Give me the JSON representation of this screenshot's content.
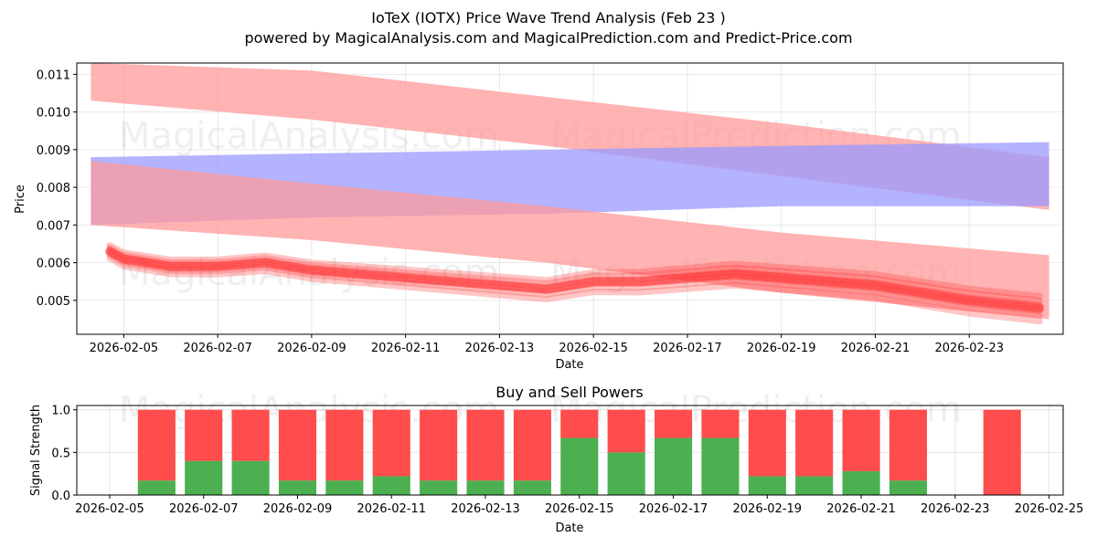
{
  "title_line1": "IoTeX (IOTX) Price Wave Trend Analysis (Feb 23 )",
  "title_line2": "powered by MagicalAnalysis.com and MagicalPrediction.com and Predict-Price.com",
  "watermarks": [
    "MagicalAnalysis.com",
    "MagicalPrediction.com"
  ],
  "colors": {
    "band_red": "#ff9999",
    "band_blue": "#9999ff",
    "price_red": "#ff3333",
    "buy": "#4caf50",
    "sell": "#ff4c4c"
  },
  "chart_data": [
    {
      "type": "area",
      "title": "",
      "xlabel": "Date",
      "ylabel": "Price",
      "grid": true,
      "xlim": [
        "2026-02-04",
        "2026-02-25"
      ],
      "ylim": [
        0.0041,
        0.0113
      ],
      "xticks": [
        "2026-02-05",
        "2026-02-07",
        "2026-02-09",
        "2026-02-11",
        "2026-02-13",
        "2026-02-15",
        "2026-02-17",
        "2026-02-19",
        "2026-02-21",
        "2026-02-23"
      ],
      "yticks": [
        "0.005",
        "0.006",
        "0.007",
        "0.008",
        "0.009",
        "0.010",
        "0.011"
      ],
      "bands": [
        {
          "name": "upper red band",
          "color": "red",
          "x": [
            "2026-02-04.3",
            "2026-02-09",
            "2026-02-14",
            "2026-02-19",
            "2026-02-24.7"
          ],
          "lower": [
            0.0103,
            0.0098,
            0.0091,
            0.0083,
            0.0074
          ],
          "upper": [
            0.0113,
            0.0111,
            0.0104,
            0.0097,
            0.0088
          ]
        },
        {
          "name": "blue band",
          "color": "blue",
          "x": [
            "2026-02-04.3",
            "2026-02-09",
            "2026-02-14",
            "2026-02-19",
            "2026-02-24.7"
          ],
          "lower": [
            0.007,
            0.0072,
            0.0073,
            0.0075,
            0.0075
          ],
          "upper": [
            0.0088,
            0.0089,
            0.009,
            0.0091,
            0.0092
          ]
        },
        {
          "name": "lower red band",
          "color": "red",
          "x": [
            "2026-02-04.3",
            "2026-02-09",
            "2026-02-14",
            "2026-02-19",
            "2026-02-24.7"
          ],
          "lower": [
            0.007,
            0.0066,
            0.006,
            0.0052,
            0.0045
          ],
          "upper": [
            0.0087,
            0.0081,
            0.0075,
            0.0068,
            0.0062
          ]
        }
      ],
      "price_line": {
        "x": [
          "2026-02-04.7",
          "2026-02-05.0",
          "2026-02-06.0",
          "2026-02-07.0",
          "2026-02-08.0",
          "2026-02-09.0",
          "2026-02-10.0",
          "2026-02-11.0",
          "2026-02-12.0",
          "2026-02-13.0",
          "2026-02-14.0",
          "2026-02-15.0",
          "2026-02-16.0",
          "2026-02-17.0",
          "2026-02-18.0",
          "2026-02-19.0",
          "2026-02-20.0",
          "2026-02-21.0",
          "2026-02-22.0",
          "2026-02-23.0",
          "2026-02-24.5"
        ],
        "values": [
          0.0063,
          0.0061,
          0.0059,
          0.0059,
          0.006,
          0.0058,
          0.0057,
          0.0056,
          0.0055,
          0.0054,
          0.0053,
          0.0055,
          0.0055,
          0.0056,
          0.0057,
          0.0056,
          0.0055,
          0.0054,
          0.0052,
          0.005,
          0.0048
        ]
      }
    },
    {
      "type": "bar",
      "title": "Buy and Sell Powers",
      "xlabel": "Date",
      "ylabel": "Signal Strength",
      "grid": true,
      "xlim": [
        "2026-02-04.3",
        "2026-02-25.3"
      ],
      "ylim": [
        0,
        1.05
      ],
      "xticks": [
        "2026-02-05",
        "2026-02-07",
        "2026-02-09",
        "2026-02-11",
        "2026-02-13",
        "2026-02-15",
        "2026-02-17",
        "2026-02-19",
        "2026-02-21",
        "2026-02-23",
        "2026-02-25"
      ],
      "yticks": [
        "0.0",
        "0.5",
        "1.0"
      ],
      "categories": [
        "2026-02-06",
        "2026-02-07",
        "2026-02-08",
        "2026-02-09",
        "2026-02-10",
        "2026-02-11",
        "2026-02-12",
        "2026-02-13",
        "2026-02-14",
        "2026-02-15",
        "2026-02-16",
        "2026-02-17",
        "2026-02-18",
        "2026-02-19",
        "2026-02-20",
        "2026-02-21",
        "2026-02-22",
        "2026-02-24"
      ],
      "series": [
        {
          "name": "Buy",
          "color": "green",
          "values": [
            0.17,
            0.4,
            0.4,
            0.17,
            0.17,
            0.22,
            0.17,
            0.17,
            0.17,
            0.67,
            0.5,
            0.67,
            0.67,
            0.22,
            0.22,
            0.28,
            0.17,
            0.0
          ]
        },
        {
          "name": "Sell",
          "color": "red",
          "values": [
            0.83,
            0.6,
            0.6,
            0.83,
            0.83,
            0.78,
            0.83,
            0.83,
            0.83,
            0.33,
            0.5,
            0.33,
            0.33,
            0.78,
            0.78,
            0.72,
            0.83,
            1.0
          ]
        }
      ]
    }
  ]
}
